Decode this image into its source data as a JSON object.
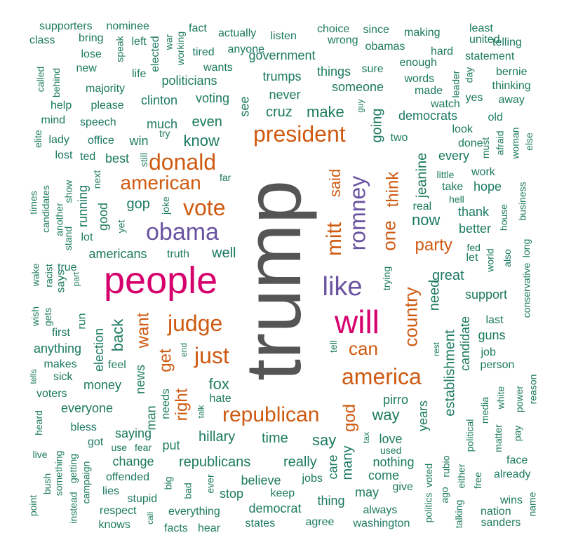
{
  "colors": {
    "gray": "#555555",
    "pink": "#D6006C",
    "purple": "#6A53A0",
    "orange": "#CF5A11",
    "green": "#1C7A5F"
  },
  "words": [
    {
      "t": "trump",
      "c": "gray"
    },
    {
      "t": "people",
      "c": "pink"
    },
    {
      "t": "will",
      "c": "pink"
    },
    {
      "t": "obama",
      "c": "purple"
    },
    {
      "t": "romney",
      "c": "purple"
    },
    {
      "t": "like",
      "c": "purple"
    },
    {
      "t": "president",
      "c": "orange"
    },
    {
      "t": "donald",
      "c": "orange"
    },
    {
      "t": "american",
      "c": "orange"
    },
    {
      "t": "vote",
      "c": "orange"
    },
    {
      "t": "judge",
      "c": "orange"
    },
    {
      "t": "just",
      "c": "orange"
    },
    {
      "t": "america",
      "c": "orange"
    },
    {
      "t": "republican",
      "c": "orange"
    },
    {
      "t": "can",
      "c": "orange"
    },
    {
      "t": "mitt",
      "c": "orange"
    },
    {
      "t": "one",
      "c": "orange"
    },
    {
      "t": "party",
      "c": "orange"
    },
    {
      "t": "country",
      "c": "orange"
    },
    {
      "t": "get",
      "c": "orange"
    },
    {
      "t": "want",
      "c": "orange"
    },
    {
      "t": "right",
      "c": "orange"
    },
    {
      "t": "god",
      "c": "orange"
    },
    {
      "t": "think",
      "c": "orange"
    },
    {
      "t": "said",
      "c": "orange"
    },
    {
      "t": "cruz",
      "c": "green"
    },
    {
      "t": "make",
      "c": "green"
    },
    {
      "t": "know",
      "c": "green"
    },
    {
      "t": "even",
      "c": "green"
    },
    {
      "t": "gop",
      "c": "green"
    },
    {
      "t": "going",
      "c": "green"
    },
    {
      "t": "fox",
      "c": "green"
    },
    {
      "t": "now",
      "c": "green"
    },
    {
      "t": "back",
      "c": "green"
    },
    {
      "t": "well",
      "c": "green"
    },
    {
      "t": "way",
      "c": "green"
    },
    {
      "t": "say",
      "c": "green"
    },
    {
      "t": "time",
      "c": "green"
    },
    {
      "t": "hillary",
      "c": "green"
    },
    {
      "t": "need",
      "c": "green"
    },
    {
      "t": "great",
      "c": "green"
    },
    {
      "t": "jeanine",
      "c": "green"
    },
    {
      "t": "establishment",
      "c": "green"
    },
    {
      "t": "republicans",
      "c": "green"
    },
    {
      "t": "really",
      "c": "green"
    },
    {
      "t": "many",
      "c": "green"
    },
    {
      "t": "love",
      "c": "green"
    },
    {
      "t": "pirro",
      "c": "green"
    },
    {
      "t": "years",
      "c": "green"
    },
    {
      "t": "news",
      "c": "green"
    },
    {
      "t": "man",
      "c": "green"
    },
    {
      "t": "good",
      "c": "green"
    },
    {
      "t": "money",
      "c": "green"
    },
    {
      "t": "someone",
      "c": "green"
    },
    {
      "t": "never",
      "c": "green"
    },
    {
      "t": "trumps",
      "c": "green"
    },
    {
      "t": "things",
      "c": "green"
    },
    {
      "t": "see",
      "c": "green"
    },
    {
      "t": "voting",
      "c": "green"
    },
    {
      "t": "clinton",
      "c": "green"
    },
    {
      "t": "politicians",
      "c": "green"
    },
    {
      "t": "wants",
      "c": "green"
    },
    {
      "t": "government",
      "c": "green"
    },
    {
      "t": "much",
      "c": "green"
    },
    {
      "t": "win",
      "c": "green"
    },
    {
      "t": "best",
      "c": "green"
    },
    {
      "t": "americans",
      "c": "green"
    },
    {
      "t": "truth",
      "c": "green"
    },
    {
      "t": "running",
      "c": "green"
    },
    {
      "t": "thank",
      "c": "green"
    },
    {
      "t": "better",
      "c": "green"
    },
    {
      "t": "take",
      "c": "green"
    },
    {
      "t": "hope",
      "c": "green"
    },
    {
      "t": "work",
      "c": "green"
    },
    {
      "t": "every",
      "c": "green"
    },
    {
      "t": "done",
      "c": "green"
    },
    {
      "t": "look",
      "c": "green"
    },
    {
      "t": "democrats",
      "c": "green"
    },
    {
      "t": "real",
      "c": "green"
    },
    {
      "t": "support",
      "c": "green"
    },
    {
      "t": "candidate",
      "c": "green"
    },
    {
      "t": "last",
      "c": "green"
    },
    {
      "t": "guns",
      "c": "green"
    },
    {
      "t": "job",
      "c": "green"
    },
    {
      "t": "person",
      "c": "green"
    },
    {
      "t": "election",
      "c": "green"
    },
    {
      "t": "run",
      "c": "green"
    },
    {
      "t": "anything",
      "c": "green"
    },
    {
      "t": "feel",
      "c": "green"
    },
    {
      "t": "makes",
      "c": "green"
    },
    {
      "t": "everyone",
      "c": "green"
    },
    {
      "t": "saying",
      "c": "green"
    },
    {
      "t": "change",
      "c": "green"
    },
    {
      "t": "put",
      "c": "green"
    },
    {
      "t": "believe",
      "c": "green"
    },
    {
      "t": "nothing",
      "c": "green"
    },
    {
      "t": "come",
      "c": "green"
    },
    {
      "t": "thing",
      "c": "green"
    },
    {
      "t": "may",
      "c": "green"
    },
    {
      "t": "always",
      "c": "green"
    },
    {
      "t": "democrat",
      "c": "green"
    },
    {
      "t": "states",
      "c": "green"
    },
    {
      "t": "washington",
      "c": "green"
    },
    {
      "t": "agree",
      "c": "green"
    },
    {
      "t": "everything",
      "c": "green"
    },
    {
      "t": "stop",
      "c": "green"
    },
    {
      "t": "keep",
      "c": "green"
    },
    {
      "t": "jobs",
      "c": "green"
    },
    {
      "t": "care",
      "c": "green"
    },
    {
      "t": "facts",
      "c": "green"
    },
    {
      "t": "hear",
      "c": "green"
    },
    {
      "t": "needs",
      "c": "green"
    },
    {
      "t": "supporters",
      "c": "green"
    },
    {
      "t": "nominee",
      "c": "green"
    },
    {
      "t": "fact",
      "c": "green"
    },
    {
      "t": "actually",
      "c": "green"
    },
    {
      "t": "choice",
      "c": "green"
    },
    {
      "t": "since",
      "c": "green"
    },
    {
      "t": "making",
      "c": "green"
    },
    {
      "t": "least",
      "c": "green"
    },
    {
      "t": "class",
      "c": "green"
    },
    {
      "t": "bring",
      "c": "green"
    },
    {
      "t": "left",
      "c": "green"
    },
    {
      "t": "listen",
      "c": "green"
    },
    {
      "t": "wrong",
      "c": "green"
    },
    {
      "t": "obamas",
      "c": "green"
    },
    {
      "t": "united",
      "c": "green"
    },
    {
      "t": "telling",
      "c": "green"
    },
    {
      "t": "lose",
      "c": "green"
    },
    {
      "t": "tired",
      "c": "green"
    },
    {
      "t": "anyone",
      "c": "green"
    },
    {
      "t": "hard",
      "c": "green"
    },
    {
      "t": "statement",
      "c": "green"
    },
    {
      "t": "new",
      "c": "green"
    },
    {
      "t": "enough",
      "c": "green"
    },
    {
      "t": "sure",
      "c": "green"
    },
    {
      "t": "bernie",
      "c": "green"
    },
    {
      "t": "words",
      "c": "green"
    },
    {
      "t": "majority",
      "c": "green"
    },
    {
      "t": "thinking",
      "c": "green"
    },
    {
      "t": "made",
      "c": "green"
    },
    {
      "t": "yes",
      "c": "green"
    },
    {
      "t": "help",
      "c": "green"
    },
    {
      "t": "please",
      "c": "green"
    },
    {
      "t": "watch",
      "c": "green"
    },
    {
      "t": "away",
      "c": "green"
    },
    {
      "t": "mind",
      "c": "green"
    },
    {
      "t": "speech",
      "c": "green"
    },
    {
      "t": "old",
      "c": "green"
    },
    {
      "t": "lady",
      "c": "green"
    },
    {
      "t": "office",
      "c": "green"
    },
    {
      "t": "two",
      "c": "green"
    },
    {
      "t": "lost",
      "c": "green"
    },
    {
      "t": "ted",
      "c": "green"
    },
    {
      "t": "little",
      "c": "green"
    },
    {
      "t": "hell",
      "c": "green"
    },
    {
      "t": "far",
      "c": "green"
    },
    {
      "t": "lot",
      "c": "green"
    },
    {
      "t": "fed",
      "c": "green"
    },
    {
      "t": "let",
      "c": "green"
    },
    {
      "t": "true",
      "c": "green"
    },
    {
      "t": "says",
      "c": "green"
    },
    {
      "t": "first",
      "c": "green"
    },
    {
      "t": "sick",
      "c": "green"
    },
    {
      "t": "voters",
      "c": "green"
    },
    {
      "t": "hate",
      "c": "green"
    },
    {
      "t": "bless",
      "c": "green"
    },
    {
      "t": "got",
      "c": "green"
    },
    {
      "t": "use",
      "c": "green"
    },
    {
      "t": "fear",
      "c": "green"
    },
    {
      "t": "offended",
      "c": "green"
    },
    {
      "t": "lies",
      "c": "green"
    },
    {
      "t": "stupid",
      "c": "green"
    },
    {
      "t": "respect",
      "c": "green"
    },
    {
      "t": "knows",
      "c": "green"
    },
    {
      "t": "used",
      "c": "green"
    },
    {
      "t": "give",
      "c": "green"
    },
    {
      "t": "face",
      "c": "green"
    },
    {
      "t": "already",
      "c": "green"
    },
    {
      "t": "wins",
      "c": "green"
    },
    {
      "t": "nation",
      "c": "green"
    },
    {
      "t": "sanders",
      "c": "green"
    },
    {
      "t": "speak",
      "c": "green"
    },
    {
      "t": "life",
      "c": "green"
    },
    {
      "t": "elected",
      "c": "green"
    },
    {
      "t": "war",
      "c": "green"
    },
    {
      "t": "working",
      "c": "green"
    },
    {
      "t": "called",
      "c": "green"
    },
    {
      "t": "behind",
      "c": "green"
    },
    {
      "t": "elite",
      "c": "green"
    },
    {
      "t": "try",
      "c": "green"
    },
    {
      "t": "still",
      "c": "green"
    },
    {
      "t": "next",
      "c": "green"
    },
    {
      "t": "show",
      "c": "green"
    },
    {
      "t": "times",
      "c": "green"
    },
    {
      "t": "candidates",
      "c": "green"
    },
    {
      "t": "another",
      "c": "green"
    },
    {
      "t": "stand",
      "c": "green"
    },
    {
      "t": "joke",
      "c": "green"
    },
    {
      "t": "yet",
      "c": "green"
    },
    {
      "t": "wake",
      "c": "green"
    },
    {
      "t": "racist",
      "c": "green"
    },
    {
      "t": "part",
      "c": "green"
    },
    {
      "t": "gets",
      "c": "green"
    },
    {
      "t": "wish",
      "c": "green"
    },
    {
      "t": "tells",
      "c": "green"
    },
    {
      "t": "heard",
      "c": "green"
    },
    {
      "t": "live",
      "c": "green"
    },
    {
      "t": "something",
      "c": "green"
    },
    {
      "t": "getting",
      "c": "green"
    },
    {
      "t": "campaign",
      "c": "green"
    },
    {
      "t": "bush",
      "c": "green"
    },
    {
      "t": "instead",
      "c": "green"
    },
    {
      "t": "point",
      "c": "green"
    },
    {
      "t": "big",
      "c": "green"
    },
    {
      "t": "call",
      "c": "green"
    },
    {
      "t": "bad",
      "c": "green"
    },
    {
      "t": "ever",
      "c": "green"
    },
    {
      "t": "talk",
      "c": "green"
    },
    {
      "t": "end",
      "c": "green"
    },
    {
      "t": "guy",
      "c": "green"
    },
    {
      "t": "trying",
      "c": "green"
    },
    {
      "t": "tell",
      "c": "green"
    },
    {
      "t": "tax",
      "c": "green"
    },
    {
      "t": "rest",
      "c": "green"
    },
    {
      "t": "voted",
      "c": "green"
    },
    {
      "t": "rubio",
      "c": "green"
    },
    {
      "t": "ago",
      "c": "green"
    },
    {
      "t": "politics",
      "c": "green"
    },
    {
      "t": "talking",
      "c": "green"
    },
    {
      "t": "either",
      "c": "green"
    },
    {
      "t": "political",
      "c": "green"
    },
    {
      "t": "free",
      "c": "green"
    },
    {
      "t": "media",
      "c": "green"
    },
    {
      "t": "matter",
      "c": "green"
    },
    {
      "t": "white",
      "c": "green"
    },
    {
      "t": "power",
      "c": "green"
    },
    {
      "t": "pay",
      "c": "green"
    },
    {
      "t": "reason",
      "c": "green"
    },
    {
      "t": "conservative",
      "c": "green"
    },
    {
      "t": "long",
      "c": "green"
    },
    {
      "t": "also",
      "c": "green"
    },
    {
      "t": "world",
      "c": "green"
    },
    {
      "t": "house",
      "c": "green"
    },
    {
      "t": "business",
      "c": "green"
    },
    {
      "t": "must",
      "c": "green"
    },
    {
      "t": "afraid",
      "c": "green"
    },
    {
      "t": "woman",
      "c": "green"
    },
    {
      "t": "else",
      "c": "green"
    },
    {
      "t": "leader",
      "c": "green"
    },
    {
      "t": "day",
      "c": "green"
    },
    {
      "t": "name",
      "c": "green"
    }
  ]
}
